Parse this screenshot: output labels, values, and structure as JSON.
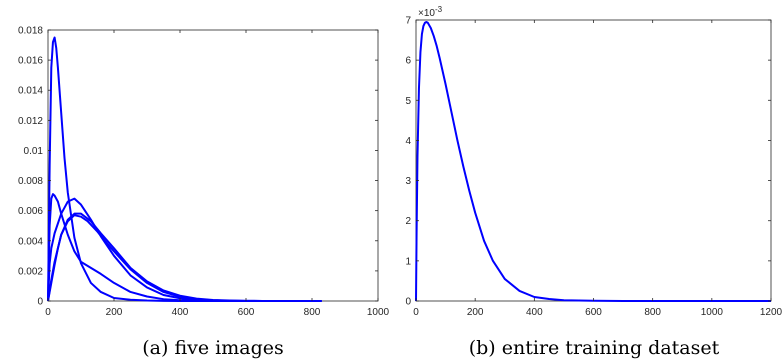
{
  "chart_data": [
    {
      "type": "line",
      "caption": "(a) five images",
      "xlim": [
        0,
        1000
      ],
      "ylim": [
        0,
        0.018
      ],
      "xticks": [
        0,
        200,
        400,
        600,
        800,
        1000
      ],
      "xtick_labels": [
        "0",
        "200",
        "400",
        "600",
        "800",
        "1000"
      ],
      "yticks": [
        0,
        0.002,
        0.004,
        0.006,
        0.008,
        0.01,
        0.012,
        0.014,
        0.016,
        0.018
      ],
      "ytick_labels": [
        "0",
        "0.002",
        "0.004",
        "0.006",
        "0.008",
        "0.01",
        "0.012",
        "0.014",
        "0.016",
        "0.018"
      ],
      "grid": false,
      "color": "#0000ff",
      "series": [
        {
          "x": [
            0,
            5,
            10,
            15,
            20,
            25,
            30,
            40,
            50,
            60,
            80,
            100,
            130,
            160,
            200,
            250,
            300,
            350,
            400,
            450,
            500,
            550
          ],
          "y": [
            0.0,
            0.009,
            0.0155,
            0.0172,
            0.0175,
            0.0168,
            0.0155,
            0.0125,
            0.0095,
            0.0072,
            0.0042,
            0.0025,
            0.0012,
            0.0006,
            0.0002,
            8e-05,
            3e-05,
            1e-05,
            0.0,
            0.0,
            0.0,
            0.0
          ]
        },
        {
          "x": [
            0,
            5,
            10,
            15,
            20,
            30,
            40,
            60,
            80,
            100,
            130,
            160,
            200,
            250,
            300,
            350,
            400,
            450,
            500,
            550,
            600
          ],
          "y": [
            0.0,
            0.005,
            0.0068,
            0.0071,
            0.007,
            0.0066,
            0.0058,
            0.0044,
            0.0033,
            0.0026,
            0.0022,
            0.0018,
            0.0012,
            0.0006,
            0.0003,
            0.00012,
            5e-05,
            2e-05,
            0.0,
            0.0,
            0.0
          ]
        },
        {
          "x": [
            0,
            5,
            10,
            20,
            40,
            60,
            80,
            100,
            130,
            160,
            200,
            250,
            300,
            350,
            400,
            450,
            500,
            550,
            600,
            650
          ],
          "y": [
            0.0,
            0.0025,
            0.0035,
            0.0045,
            0.0058,
            0.0066,
            0.0068,
            0.0064,
            0.0054,
            0.0043,
            0.003,
            0.0017,
            0.0009,
            0.0004,
            0.00018,
            8e-05,
            3e-05,
            1e-05,
            0.0,
            0.0
          ]
        },
        {
          "x": [
            0,
            10,
            20,
            30,
            40,
            60,
            80,
            100,
            120,
            150,
            180,
            200,
            250,
            300,
            350,
            400,
            450,
            500,
            550,
            600,
            650,
            700
          ],
          "y": [
            0.0,
            0.0012,
            0.0024,
            0.0035,
            0.0044,
            0.0053,
            0.0057,
            0.0056,
            0.0053,
            0.0046,
            0.0038,
            0.0033,
            0.0021,
            0.0012,
            0.0006,
            0.00028,
            0.00012,
            5e-05,
            2e-05,
            1e-05,
            0.0,
            0.0
          ]
        },
        {
          "x": [
            0,
            10,
            20,
            40,
            60,
            80,
            100,
            130,
            160,
            200,
            250,
            300,
            350,
            400,
            450,
            500,
            550,
            600,
            650,
            700,
            750,
            800,
            830
          ],
          "y": [
            0.0,
            0.0014,
            0.0026,
            0.0044,
            0.0054,
            0.0058,
            0.0058,
            0.0053,
            0.0045,
            0.0035,
            0.0022,
            0.0013,
            0.0007,
            0.00035,
            0.00016,
            7e-05,
            3e-05,
            1e-05,
            0.0,
            0.0,
            0.0,
            0.0,
            0.0
          ]
        }
      ]
    },
    {
      "type": "line",
      "caption": "(b) entire training dataset",
      "xlim": [
        0,
        1200
      ],
      "ylim": [
        0,
        7
      ],
      "y_multiplier": "×10",
      "y_exponent": "-3",
      "xticks": [
        0,
        200,
        400,
        600,
        800,
        1000,
        1200
      ],
      "xtick_labels": [
        "0",
        "200",
        "400",
        "600",
        "800",
        "1000",
        "1200"
      ],
      "yticks": [
        0,
        1,
        2,
        3,
        4,
        5,
        6,
        7
      ],
      "ytick_labels": [
        "0",
        "1",
        "2",
        "3",
        "4",
        "5",
        "6",
        "7"
      ],
      "grid": false,
      "color": "#0000ff",
      "series": [
        {
          "x": [
            0,
            2,
            5,
            10,
            15,
            20,
            25,
            30,
            35,
            40,
            50,
            60,
            70,
            80,
            100,
            120,
            140,
            160,
            180,
            200,
            230,
            260,
            300,
            350,
            400,
            450,
            500,
            600,
            700,
            800,
            900,
            1000,
            1100,
            1200
          ],
          "y": [
            0.0,
            1.7,
            3.6,
            5.3,
            6.2,
            6.65,
            6.85,
            6.93,
            6.95,
            6.93,
            6.8,
            6.6,
            6.35,
            6.05,
            5.4,
            4.7,
            4.0,
            3.35,
            2.75,
            2.2,
            1.5,
            1.0,
            0.55,
            0.25,
            0.1,
            0.05,
            0.02,
            0.005,
            0.0,
            0.0,
            0.0,
            0.0,
            0.0,
            0.0
          ]
        }
      ]
    }
  ]
}
